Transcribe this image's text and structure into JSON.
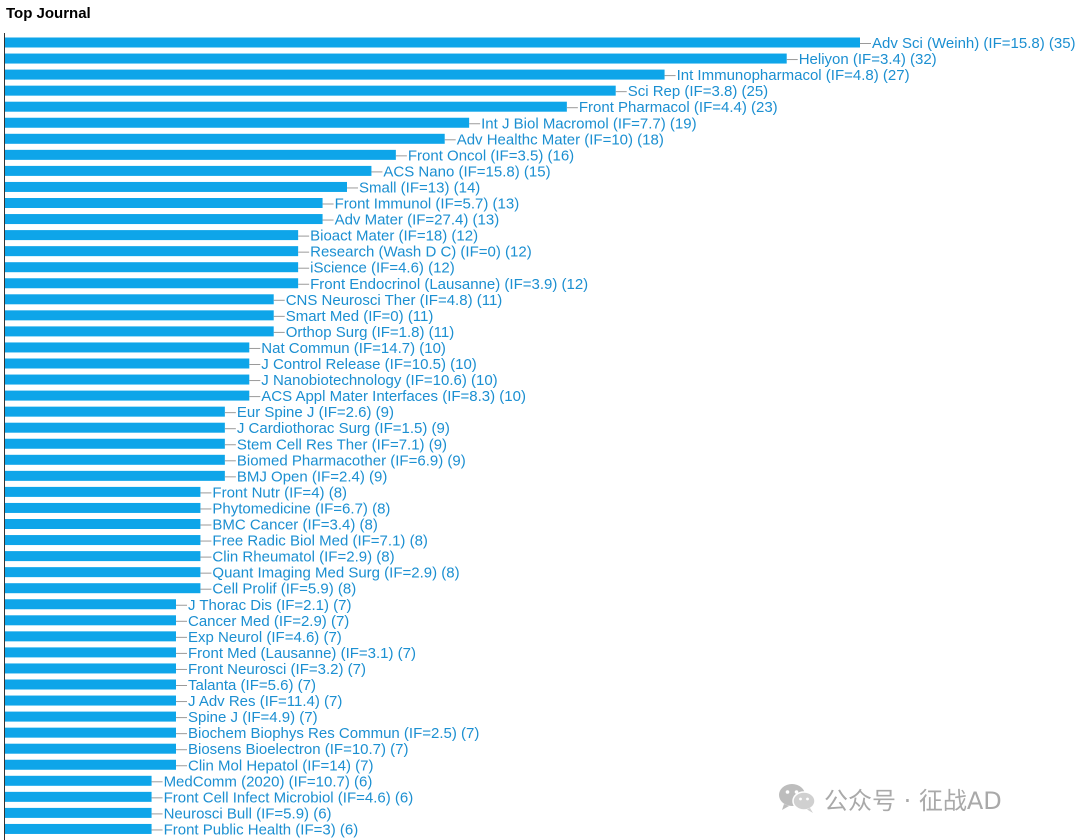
{
  "chart_data": {
    "type": "bar",
    "orientation": "horizontal",
    "title": "Top Journal",
    "bar_color": "#0ea5e9",
    "label_color": "#1b8fd1",
    "categories": [
      "Adv Sci (Weinh) (IF=15.8) (35)",
      "Heliyon (IF=3.4) (32)",
      "Int Immunopharmacol (IF=4.8) (27)",
      "Sci Rep (IF=3.8) (25)",
      "Front Pharmacol (IF=4.4) (23)",
      "Int J Biol Macromol (IF=7.7) (19)",
      "Adv Healthc Mater (IF=10) (18)",
      "Front Oncol (IF=3.5) (16)",
      "ACS Nano (IF=15.8) (15)",
      "Small (IF=13) (14)",
      "Front Immunol (IF=5.7) (13)",
      "Adv Mater (IF=27.4) (13)",
      "Bioact Mater (IF=18) (12)",
      "Research (Wash D C) (IF=0) (12)",
      "iScience (IF=4.6) (12)",
      "Front Endocrinol (Lausanne) (IF=3.9) (12)",
      "CNS Neurosci Ther (IF=4.8) (11)",
      "Smart Med (IF=0) (11)",
      "Orthop Surg (IF=1.8) (11)",
      "Nat Commun (IF=14.7) (10)",
      "J Control Release (IF=10.5) (10)",
      "J Nanobiotechnology (IF=10.6) (10)",
      "ACS Appl Mater Interfaces (IF=8.3) (10)",
      "Eur Spine J (IF=2.6) (9)",
      "J Cardiothorac Surg (IF=1.5) (9)",
      "Stem Cell Res Ther (IF=7.1) (9)",
      "Biomed Pharmacother (IF=6.9) (9)",
      "BMJ Open (IF=2.4) (9)",
      "Front Nutr (IF=4) (8)",
      "Phytomedicine (IF=6.7) (8)",
      "BMC Cancer (IF=3.4) (8)",
      "Free Radic Biol Med (IF=7.1) (8)",
      "Clin Rheumatol (IF=2.9) (8)",
      "Quant Imaging Med Surg (IF=2.9) (8)",
      "Cell Prolif (IF=5.9) (8)",
      "J Thorac Dis (IF=2.1) (7)",
      "Cancer Med (IF=2.9) (7)",
      "Exp Neurol (IF=4.6) (7)",
      "Front Med (Lausanne) (IF=3.1) (7)",
      "Front Neurosci (IF=3.2) (7)",
      "Talanta (IF=5.6) (7)",
      "J Adv Res (IF=11.4) (7)",
      "Spine J (IF=4.9) (7)",
      "Biochem Biophys Res Commun (IF=2.5) (7)",
      "Biosens Bioelectron (IF=10.7) (7)",
      "Clin Mol Hepatol (IF=14) (7)",
      "MedComm (2020) (IF=10.7) (6)",
      "Front Cell Infect Microbiol (IF=4.6) (6)",
      "Neurosci Bull (IF=5.9) (6)",
      "Front Public Health (IF=3) (6)"
    ],
    "values": [
      35,
      32,
      27,
      25,
      23,
      19,
      18,
      16,
      15,
      14,
      13,
      13,
      12,
      12,
      12,
      12,
      11,
      11,
      11,
      10,
      10,
      10,
      10,
      9,
      9,
      9,
      9,
      9,
      8,
      8,
      8,
      8,
      8,
      8,
      8,
      7,
      7,
      7,
      7,
      7,
      7,
      7,
      7,
      7,
      7,
      7,
      6,
      6,
      6,
      6
    ],
    "xlim": [
      0,
      35
    ]
  },
  "watermark": {
    "icon": "wechat-icon",
    "text": "公众号 · 征战AD"
  }
}
